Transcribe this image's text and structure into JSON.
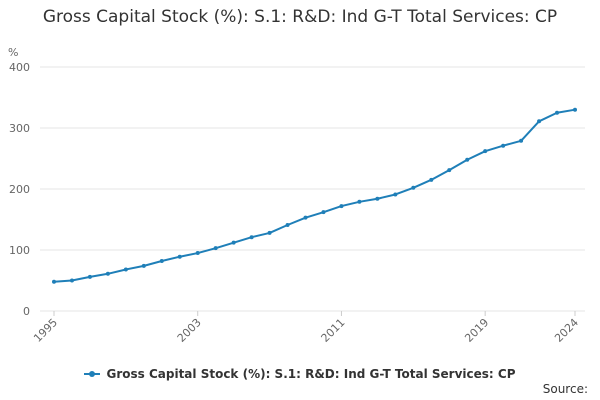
{
  "page": {
    "title": "Gross Capital Stock (%): S.1: R&D: Ind G-T Total Services: CP",
    "source_label": "Source:"
  },
  "colors": {
    "series": "#1f7fb8",
    "grid": "#e6e6e6",
    "axis_text": "#666666"
  },
  "chart_data": {
    "type": "line",
    "title": "Gross Capital Stock (%): S.1: R&D: Ind G-T Total Services: CP",
    "ylabel": "%",
    "xlabel": "",
    "ylim": [
      0,
      400
    ],
    "yticks": [
      0,
      100,
      200,
      300,
      400
    ],
    "xlim": [
      1995,
      2024
    ],
    "xticks": [
      1995,
      2003,
      2011,
      2019,
      2024
    ],
    "grid": true,
    "legend_position": "bottom",
    "x": [
      1995,
      1996,
      1997,
      1998,
      1999,
      2000,
      2001,
      2002,
      2003,
      2004,
      2005,
      2006,
      2007,
      2008,
      2009,
      2010,
      2011,
      2012,
      2013,
      2014,
      2015,
      2016,
      2017,
      2018,
      2019,
      2020,
      2021,
      2022,
      2023,
      2024
    ],
    "series": [
      {
        "name": "Gross Capital Stock (%): S.1: R&D: Ind G-T Total Services: CP",
        "values": [
          48,
          50,
          56,
          61,
          68,
          74,
          82,
          89,
          95,
          103,
          112,
          121,
          128,
          141,
          153,
          162,
          172,
          179,
          184,
          191,
          202,
          215,
          231,
          248,
          262,
          271,
          279,
          311,
          325,
          330
        ]
      }
    ]
  }
}
